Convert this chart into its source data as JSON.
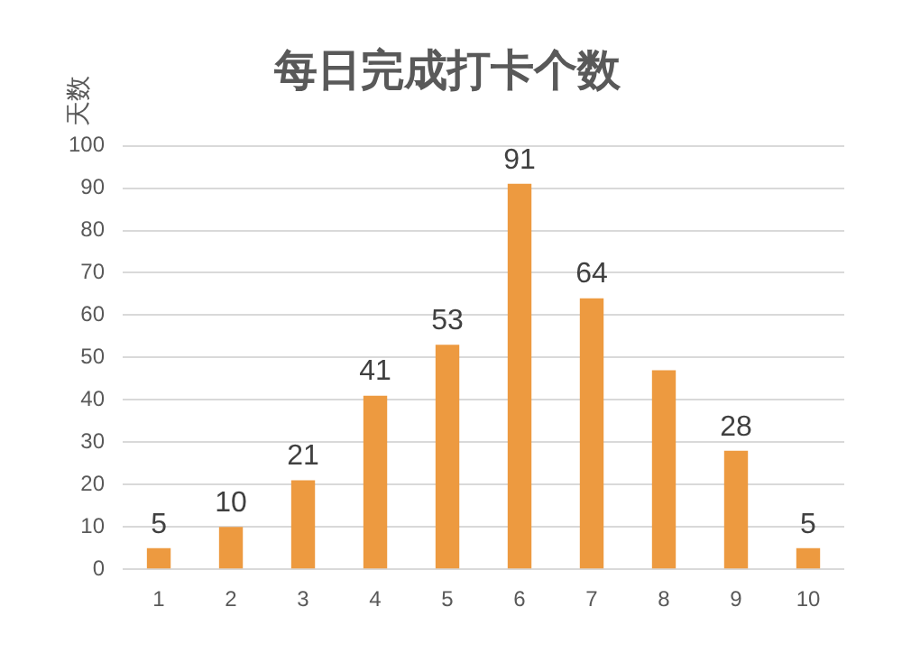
{
  "chart_data": {
    "type": "bar",
    "title": "每日完成打卡个数",
    "ylabel": "天数",
    "categories": [
      "1",
      "2",
      "3",
      "4",
      "5",
      "6",
      "7",
      "8",
      "9",
      "10"
    ],
    "values": [
      5,
      10,
      21,
      41,
      53,
      91,
      64,
      47,
      28,
      5
    ],
    "value_labels": [
      "5",
      "10",
      "21",
      "41",
      "53",
      "91",
      "64",
      null,
      "28",
      "5"
    ],
    "color": "#ed9a40",
    "ylim": [
      0,
      100
    ],
    "yticks": [
      0,
      10,
      20,
      30,
      40,
      50,
      60,
      70,
      80,
      90,
      100
    ],
    "grid": "y",
    "legend": false
  }
}
